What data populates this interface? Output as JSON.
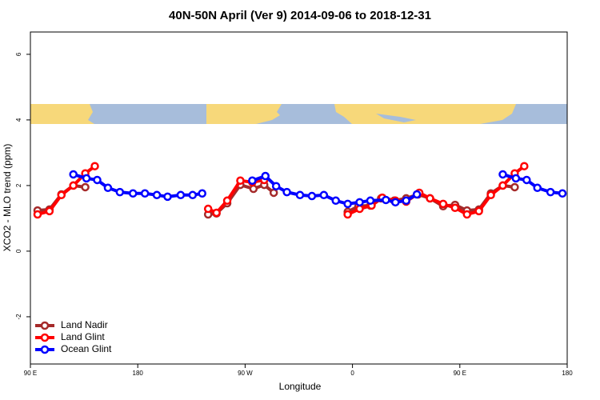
{
  "chart_data": {
    "type": "line",
    "title": "40N-50N April (Ver 9)   2014-09-06 to 2018-12-31",
    "xlabel": "Longitude",
    "ylabel": "XCO2 - MLO trend (ppm)",
    "xlim": [
      90,
      540
    ],
    "ylim": [
      -3.44,
      6.68
    ],
    "xticks": [
      {
        "value": 90,
        "label": "90 E"
      },
      180,
      {
        "value": 270,
        "label": "90 W"
      },
      {
        "value": 360,
        "label": "0"
      },
      {
        "value": 450,
        "label": "90 E"
      },
      {
        "value": 540,
        "label": "180"
      }
    ],
    "yticks": [
      -2,
      0,
      2,
      4,
      6
    ],
    "legend": "bottom-left",
    "series": [
      {
        "name": "Land Nadir",
        "color": "#a52a2a",
        "x": [
          96,
          106,
          116,
          126,
          136,
          null,
          239,
          246,
          255,
          266,
          277,
          286,
          294,
          null,
          356,
          365,
          375,
          384,
          395,
          405,
          415,
          425,
          436,
          446,
          456,
          466,
          476,
          486,
          496
        ],
        "values": [
          1.24,
          1.27,
          1.73,
          2.0,
          1.95,
          null,
          1.12,
          1.15,
          1.46,
          2.02,
          1.9,
          2.02,
          1.78,
          null,
          1.2,
          1.37,
          1.39,
          1.61,
          1.54,
          1.61,
          1.73,
          1.61,
          1.37,
          1.41,
          1.24,
          1.27,
          1.76,
          2.0,
          1.95
        ]
      },
      {
        "name": "Land Glint",
        "color": "#ff0000",
        "x": [
          96,
          106,
          116,
          126,
          136,
          144,
          null,
          239,
          246,
          255,
          266,
          276,
          286,
          null,
          356,
          366,
          376,
          385,
          396,
          405,
          416,
          425,
          436,
          446,
          456,
          466,
          476,
          486,
          496,
          504
        ],
        "values": [
          1.12,
          1.22,
          1.71,
          2.0,
          2.37,
          2.59,
          null,
          1.29,
          1.17,
          1.54,
          2.15,
          2.1,
          2.17,
          null,
          1.12,
          1.29,
          1.39,
          1.63,
          1.54,
          1.51,
          1.78,
          1.61,
          1.44,
          1.32,
          1.12,
          1.22,
          1.71,
          2.0,
          2.37,
          2.59
        ]
      },
      {
        "name": "Ocean Glint",
        "color": "#0000ff",
        "x": [
          126,
          137,
          146,
          155,
          165,
          176,
          186,
          196,
          205,
          216,
          226,
          234,
          null,
          276,
          287,
          296,
          305,
          316,
          326,
          336,
          346,
          356,
          366,
          375,
          388,
          396,
          405,
          414,
          null,
          486,
          497,
          506,
          515,
          526,
          536
        ],
        "values": [
          2.34,
          2.22,
          2.17,
          1.93,
          1.8,
          1.76,
          1.76,
          1.71,
          1.66,
          1.71,
          1.71,
          1.76,
          null,
          2.15,
          2.29,
          1.98,
          1.8,
          1.71,
          1.68,
          1.71,
          1.54,
          1.44,
          1.49,
          1.54,
          1.56,
          1.49,
          1.54,
          1.73,
          null,
          2.34,
          2.22,
          2.17,
          1.93,
          1.8,
          1.76
        ]
      }
    ]
  }
}
